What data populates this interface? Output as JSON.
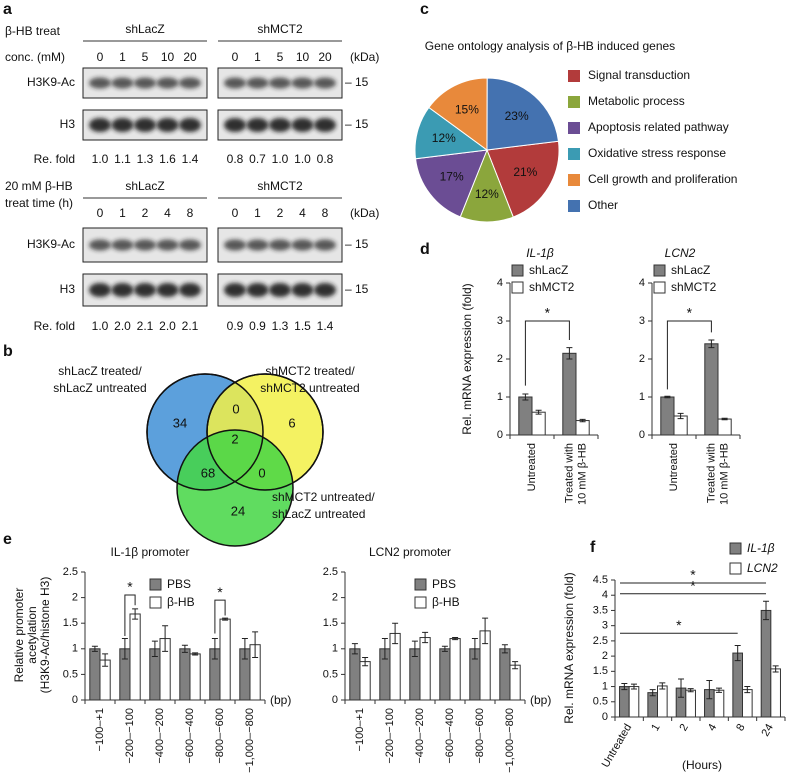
{
  "panel_labels": [
    "a",
    "b",
    "c",
    "d",
    "e",
    "f"
  ],
  "panel_a": {
    "treat_label": "β-HB treat",
    "conc_label": "conc. (mM)",
    "groups": [
      "shLacZ",
      "shMCT2"
    ],
    "concentrations": [
      0,
      1,
      5,
      10,
      20
    ],
    "kda": "(kDa)",
    "rows": [
      "H3K9-Ac",
      "H3"
    ],
    "marker": "– 15",
    "fold_label": "Re. fold",
    "fold": [
      [
        "1.0",
        "1.1",
        "1.3",
        "1.6",
        "1.4"
      ],
      [
        "0.8",
        "0.7",
        "1.0",
        "1.0",
        "0.8"
      ]
    ],
    "time_label": [
      "20 mM β-HB",
      "treat time (h)"
    ],
    "times": [
      0,
      1,
      2,
      4,
      8
    ],
    "time_fold": [
      [
        "1.0",
        "2.0",
        "2.1",
        "2.0",
        "2.1"
      ],
      [
        "0.9",
        "0.9",
        "1.3",
        "1.5",
        "1.4"
      ]
    ]
  },
  "panel_b": {
    "sets": [
      [
        "shLacZ treated/",
        "shLacZ untreated"
      ],
      [
        "shMCT2 treated/",
        "shMCT2 untreated"
      ],
      [
        "shMCT2 untreated/",
        "shLacZ untreated"
      ]
    ],
    "regions": [
      34,
      0,
      6,
      2,
      68,
      0,
      24
    ]
  },
  "chart_data": [
    {
      "type": "pie",
      "title": "Gene ontology analysis of β-HB induced genes",
      "categories": [
        "Signal transduction",
        "Metabolic process",
        "Apoptosis related pathway",
        "Oxidative stress response",
        "Cell growth and proliferation",
        "Other"
      ],
      "values": [
        21,
        12,
        17,
        12,
        15,
        23
      ],
      "value_labels": [
        "21%",
        "12%",
        "17%",
        "12%",
        "15%",
        "23%"
      ],
      "colors": [
        "#b23b3b",
        "#8ba63c",
        "#6b4d94",
        "#3b9bb3",
        "#e8893b",
        "#4472b0"
      ]
    },
    {
      "type": "bar",
      "title": "IL-1β",
      "categories": [
        [
          "Untreated"
        ],
        [
          "Treated with",
          "10 mM β-HB"
        ]
      ],
      "series": [
        {
          "name": "shLacZ",
          "color": "#808080",
          "values": [
            1.0,
            2.15
          ],
          "errors": [
            0.08,
            0.15
          ]
        },
        {
          "name": "shMCT2",
          "color": "#ffffff",
          "values": [
            0.6,
            0.38
          ],
          "errors": [
            0.05,
            0.03
          ]
        }
      ],
      "ylabel": "Rel. mRNA expression (fold)",
      "ylim": [
        0,
        4
      ],
      "yticks": [
        0,
        1,
        2,
        3,
        4
      ],
      "annotations": [
        "*"
      ]
    },
    {
      "type": "bar",
      "title": "LCN2",
      "categories": [
        [
          "Untreated"
        ],
        [
          "Treated with",
          "10 mM β-HB"
        ]
      ],
      "series": [
        {
          "name": "shLacZ",
          "color": "#808080",
          "values": [
            1.0,
            2.4
          ],
          "errors": [
            0.02,
            0.1
          ]
        },
        {
          "name": "shMCT2",
          "color": "#ffffff",
          "values": [
            0.5,
            0.42
          ],
          "errors": [
            0.07,
            0.02
          ]
        }
      ],
      "ylim": [
        0,
        4
      ],
      "yticks": [
        0,
        1,
        2,
        3,
        4
      ],
      "annotations": [
        "*"
      ]
    },
    {
      "type": "bar",
      "title": "IL-1β promoter",
      "categories": [
        "−100–+1",
        "−200–−100",
        "−400–−200",
        "−600–−400",
        "−800–−600",
        "−1,000–−800"
      ],
      "series": [
        {
          "name": "PBS",
          "color": "#808080",
          "values": [
            1.0,
            1.0,
            1.0,
            1.0,
            1.0,
            1.0
          ],
          "errors": [
            0.05,
            0.2,
            0.15,
            0.07,
            0.2,
            0.2
          ]
        },
        {
          "name": "β-HB",
          "color": "#ffffff",
          "values": [
            0.78,
            1.68,
            1.2,
            0.9,
            1.58,
            1.08
          ],
          "errors": [
            0.12,
            0.1,
            0.25,
            0.02,
            0.02,
            0.25
          ]
        }
      ],
      "ylabel": [
        "Relative promoter",
        "acetylation",
        "(H3K9-Ac/histone H3)"
      ],
      "xlabel": "(bp)",
      "ylim": [
        0,
        2.5
      ],
      "yticks": [
        0,
        0.5,
        1,
        1.5,
        2,
        2.5
      ],
      "annotations": [
        "*",
        "*"
      ]
    },
    {
      "type": "bar",
      "title": "LCN2 promoter",
      "categories": [
        "−100–+1",
        "−200–−100",
        "−400–−200",
        "−600–−400",
        "−800–−600",
        "−1,000–−800"
      ],
      "series": [
        {
          "name": "PBS",
          "color": "#808080",
          "values": [
            1.0,
            1.0,
            1.0,
            1.0,
            1.0,
            1.0
          ],
          "errors": [
            0.1,
            0.2,
            0.15,
            0.05,
            0.2,
            0.08
          ]
        },
        {
          "name": "β-HB",
          "color": "#ffffff",
          "values": [
            0.75,
            1.3,
            1.22,
            1.2,
            1.35,
            0.68
          ],
          "errors": [
            0.08,
            0.2,
            0.1,
            0.02,
            0.25,
            0.07
          ]
        }
      ],
      "xlabel": "(bp)",
      "ylim": [
        0,
        2.5
      ],
      "yticks": [
        0,
        0.5,
        1,
        1.5,
        2,
        2.5
      ]
    },
    {
      "type": "bar",
      "categories": [
        "Untreated",
        "1",
        "2",
        "4",
        "8",
        "24"
      ],
      "series": [
        {
          "name": "IL-1β",
          "color": "#808080",
          "values": [
            1.0,
            0.8,
            0.95,
            0.9,
            2.1,
            3.5
          ],
          "errors": [
            0.1,
            0.1,
            0.3,
            0.3,
            0.25,
            0.3
          ]
        },
        {
          "name": "LCN2",
          "color": "#ffffff",
          "values": [
            1.0,
            1.02,
            0.88,
            0.88,
            0.9,
            1.58
          ],
          "errors": [
            0.08,
            0.1,
            0.05,
            0.07,
            0.1,
            0.1
          ]
        }
      ],
      "ylabel": "Rel. mRNA expression (fold)",
      "xlabel": "(Hours)",
      "ylim": [
        0,
        4.5
      ],
      "yticks": [
        0,
        0.5,
        1,
        1.5,
        2,
        2.5,
        3,
        3.5,
        4,
        4.5
      ],
      "annotations": [
        "*",
        "*",
        "*"
      ]
    }
  ]
}
